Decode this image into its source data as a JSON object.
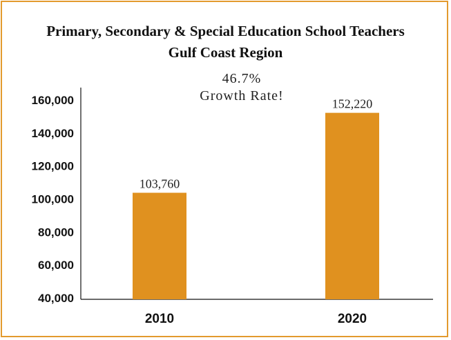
{
  "chart_data": {
    "type": "bar",
    "title": "Primary, Secondary & Special Education School Teachers",
    "subtitle": "Gulf Coast Region",
    "categories": [
      "2010",
      "2020"
    ],
    "values": [
      103760,
      152220
    ],
    "value_labels": [
      "103,760",
      "152,220"
    ],
    "ylim": [
      40000,
      160000
    ],
    "yticks": [
      40000,
      60000,
      80000,
      100000,
      120000,
      140000,
      160000
    ],
    "ytick_labels": [
      "40,000",
      "60,000",
      "80,000",
      "100,000",
      "120,000",
      "140,000",
      "160,000"
    ],
    "annotation": {
      "line1": "46.7%",
      "line2": "Growth Rate!"
    },
    "grid": false,
    "legend": "none",
    "bar_color": "#e0911f",
    "frame_color": "#e39a2e"
  }
}
